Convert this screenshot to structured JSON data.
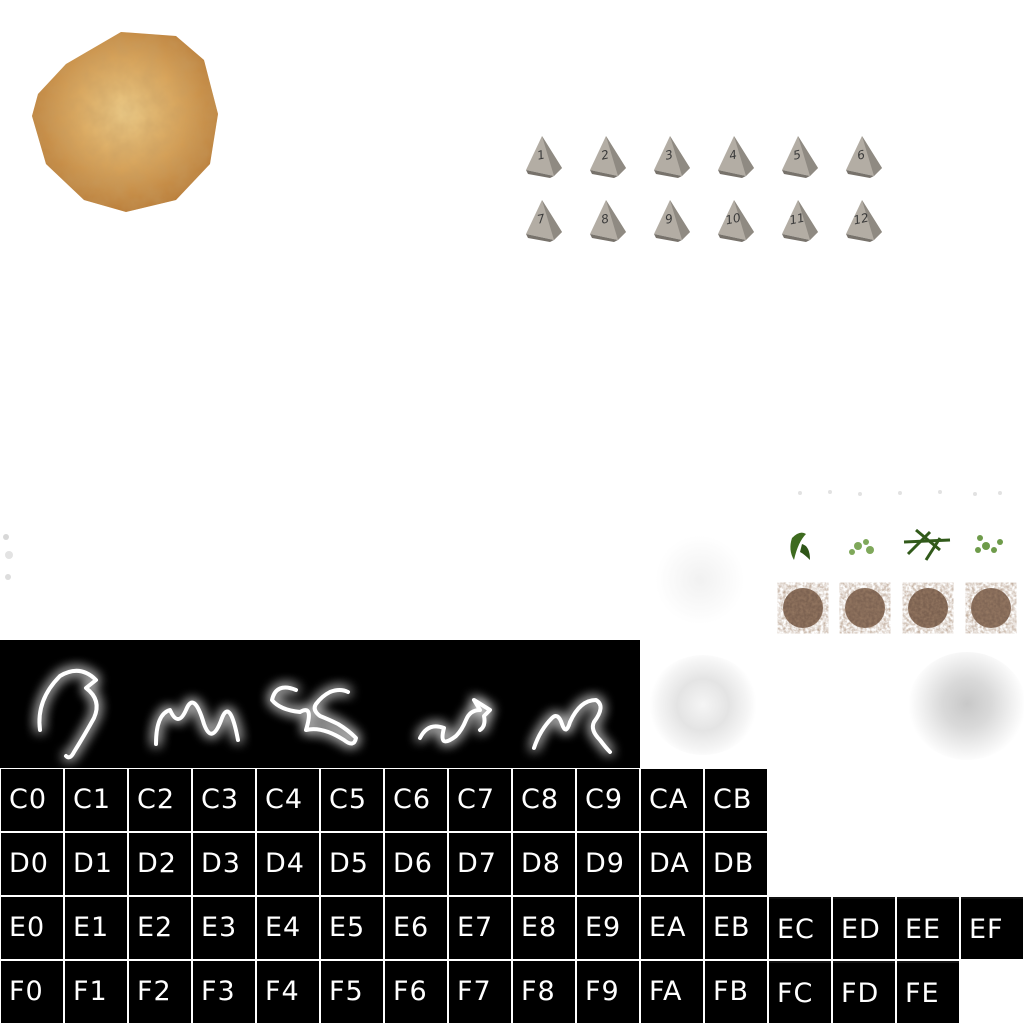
{
  "dice": {
    "row1": [
      "1",
      "2",
      "3",
      "4",
      "5",
      "6"
    ],
    "row2": [
      "7",
      "8",
      "9",
      "10",
      "11",
      "12"
    ]
  },
  "glyph_grid": {
    "rows": [
      [
        "C0",
        "C1",
        "C2",
        "C3",
        "C4",
        "C5",
        "C6",
        "C7",
        "C8",
        "C9",
        "CA",
        "CB"
      ],
      [
        "D0",
        "D1",
        "D2",
        "D3",
        "D4",
        "D5",
        "D6",
        "D7",
        "D8",
        "D9",
        "DA",
        "DB"
      ],
      [
        "E0",
        "E1",
        "E2",
        "E3",
        "E4",
        "E5",
        "E6",
        "E7",
        "E8",
        "E9",
        "EA",
        "EB",
        "EC",
        "ED",
        "EE",
        "EF"
      ],
      [
        "F0",
        "F1",
        "F2",
        "F3",
        "F4",
        "F5",
        "F6",
        "F7",
        "F8",
        "F9",
        "FA",
        "FB",
        "FC",
        "FD",
        "FE"
      ]
    ]
  },
  "colors": {
    "background": "#ffffff",
    "grid_cell": "#000000",
    "grid_text": "#ffffff",
    "rock_light": "#e8c37a",
    "rock_dark": "#b5742c",
    "die_stone": "#a9a39a"
  },
  "icons": {
    "rock": "rock-blob",
    "die": "pyramid-die",
    "lightning": "lightning-bolt",
    "smoke": "smoke-puff",
    "leaves": "leaf-cluster",
    "dirt": "dirt-clump"
  }
}
